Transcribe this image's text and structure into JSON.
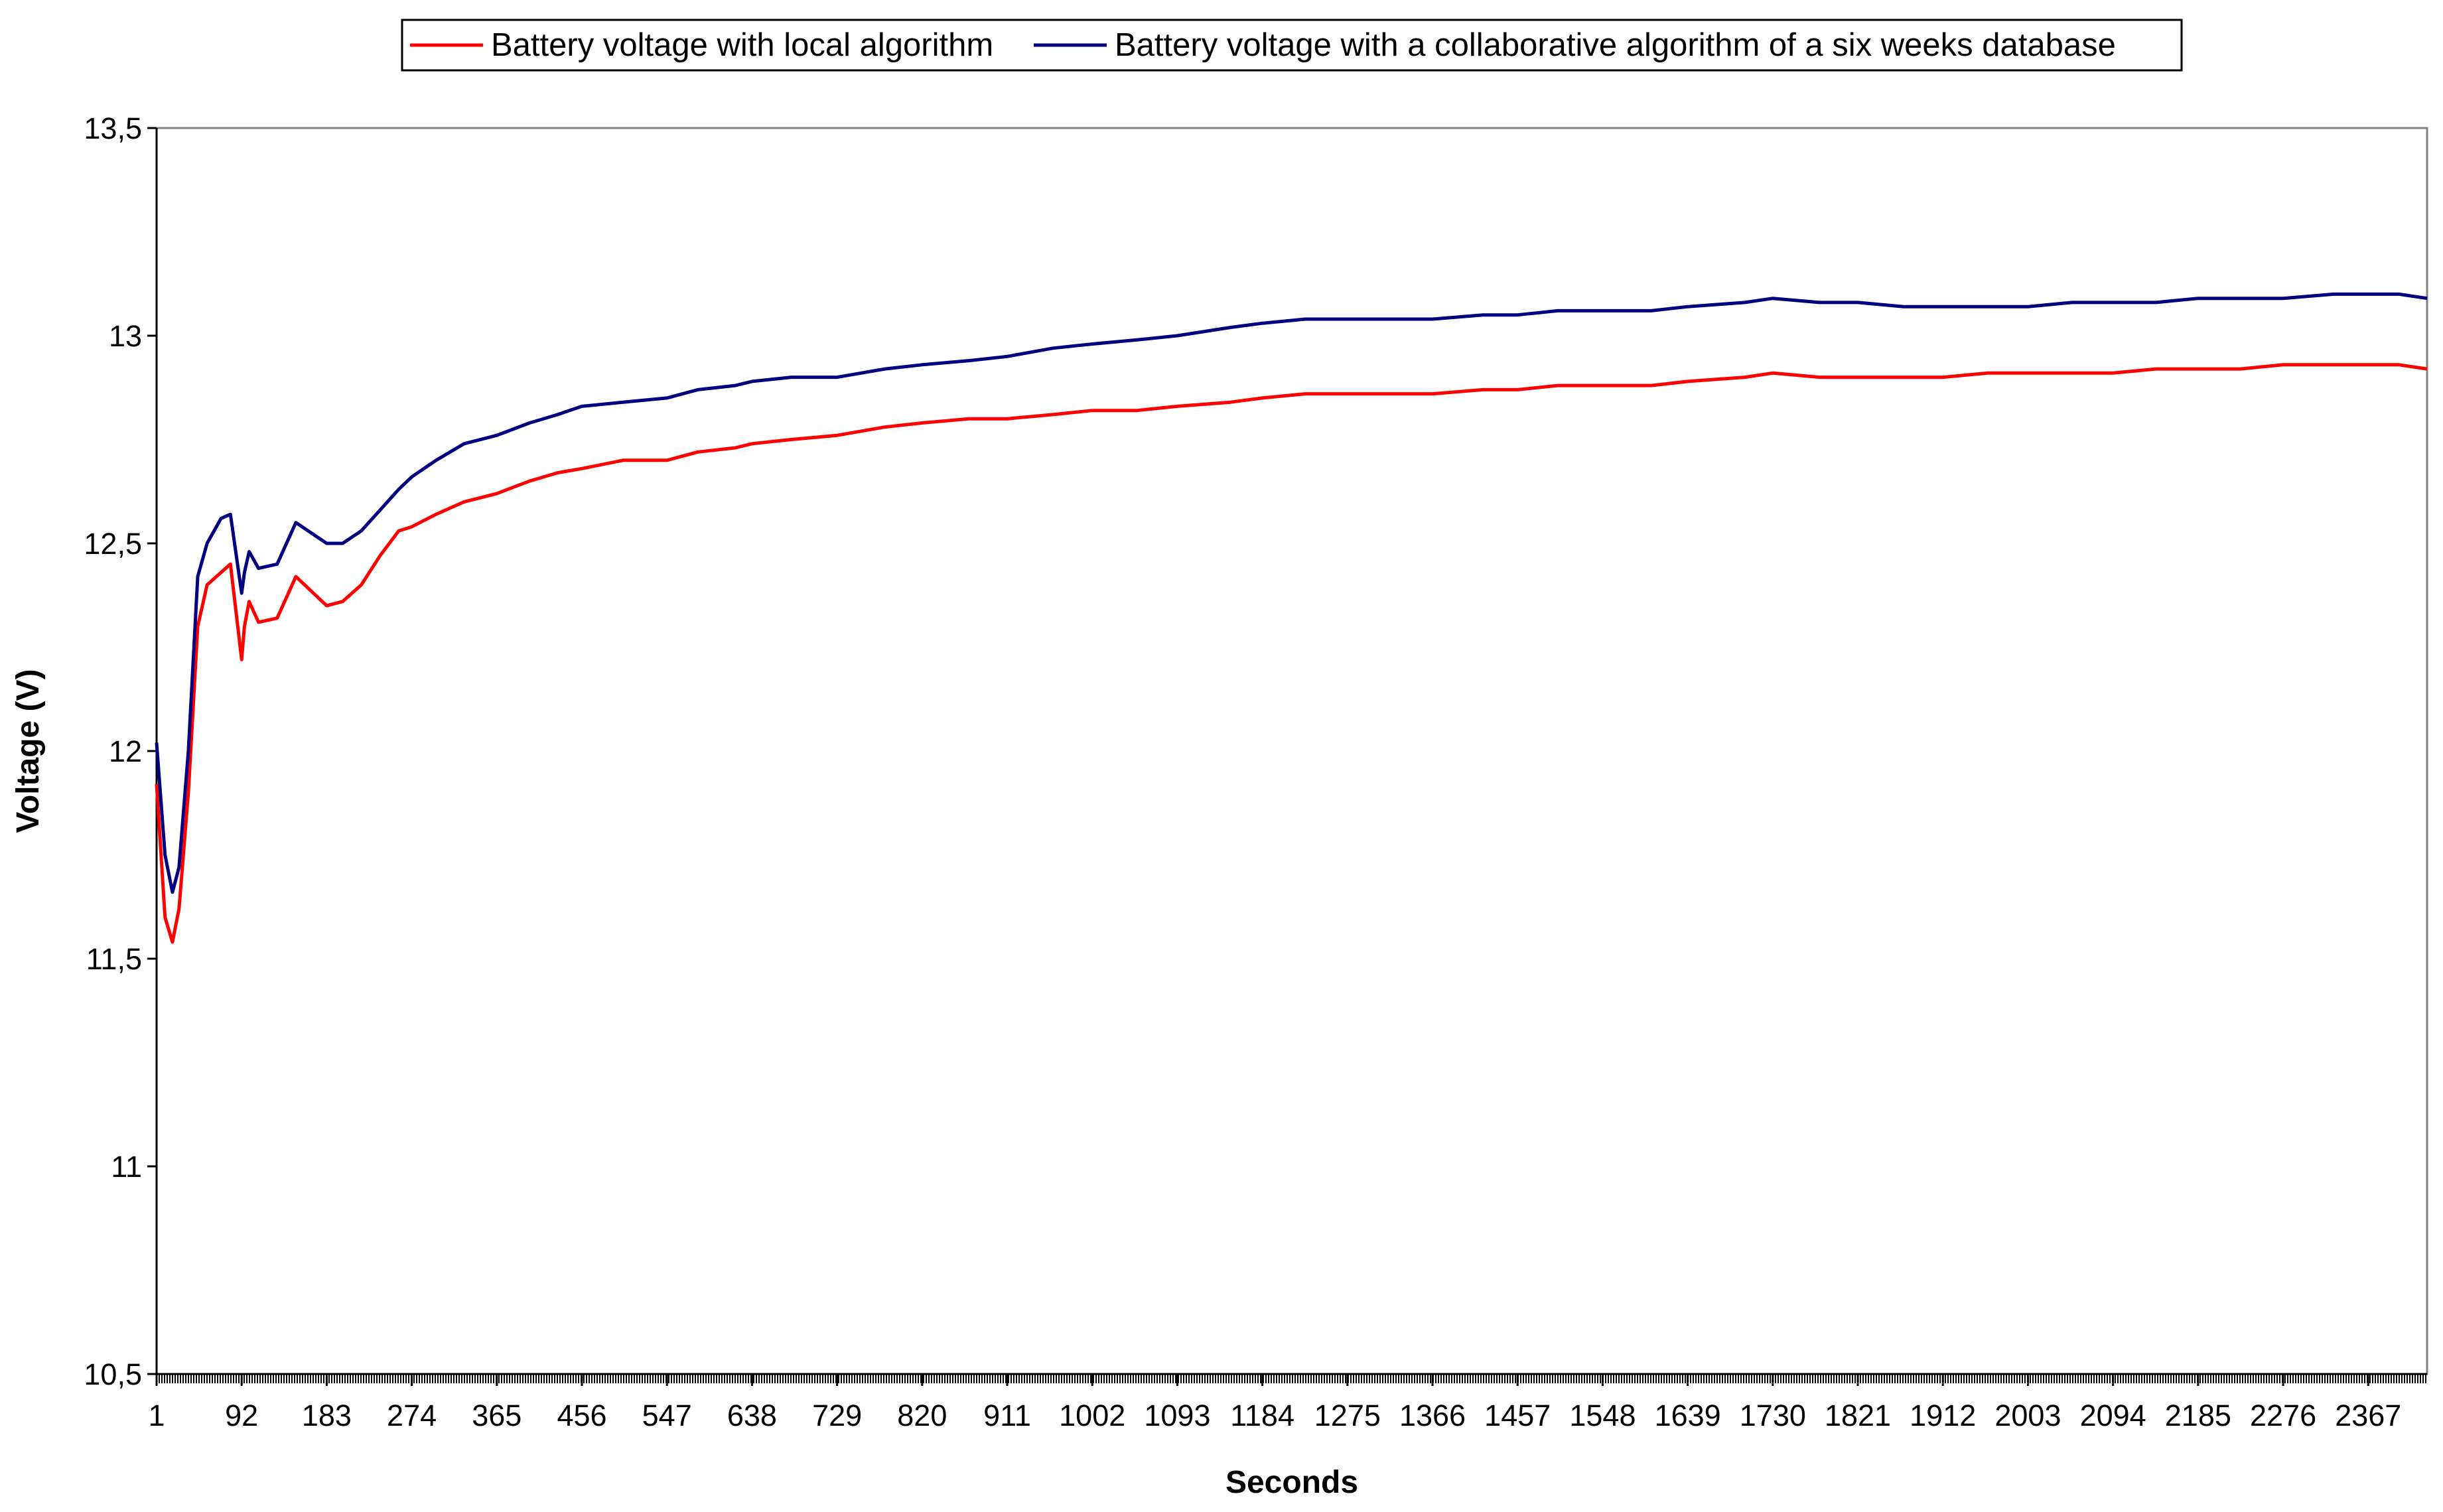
{
  "chart_data": {
    "type": "line",
    "title": "",
    "xlabel": "Seconds",
    "ylabel": "Voltage (V)",
    "xlim": [
      1,
      2430
    ],
    "ylim": [
      10.5,
      13.5
    ],
    "y_ticks": [
      "10,5",
      "11",
      "11,5",
      "12",
      "12,5",
      "13",
      "13,5"
    ],
    "y_tick_values": [
      10.5,
      11,
      11.5,
      12,
      12.5,
      13,
      13.5
    ],
    "x_ticks": [
      "1",
      "92",
      "183",
      "274",
      "365",
      "456",
      "547",
      "638",
      "729",
      "820",
      "911",
      "1002",
      "1093",
      "1184",
      "1275",
      "1366",
      "1457",
      "1548",
      "1639",
      "1730",
      "1821",
      "1912",
      "2003",
      "2094",
      "2185",
      "2276",
      "2367"
    ],
    "x_tick_values": [
      1,
      92,
      183,
      274,
      365,
      456,
      547,
      638,
      729,
      820,
      911,
      1002,
      1093,
      1184,
      1275,
      1366,
      1457,
      1548,
      1639,
      1730,
      1821,
      1912,
      2003,
      2094,
      2185,
      2276,
      2367
    ],
    "legend_position": "top",
    "grid": false,
    "series": [
      {
        "name": "Battery voltage with local algorithm",
        "color": "#ff0000",
        "x": [
          1,
          10,
          18,
          25,
          35,
          45,
          55,
          70,
          80,
          92,
          95,
          100,
          110,
          130,
          150,
          183,
          200,
          220,
          240,
          260,
          274,
          300,
          330,
          365,
          400,
          430,
          456,
          500,
          547,
          580,
          620,
          638,
          680,
          729,
          780,
          820,
          870,
          911,
          960,
          1002,
          1050,
          1093,
          1150,
          1184,
          1230,
          1275,
          1330,
          1366,
          1420,
          1457,
          1500,
          1548,
          1600,
          1639,
          1700,
          1730,
          1780,
          1821,
          1870,
          1912,
          1960,
          2003,
          2050,
          2094,
          2140,
          2185,
          2230,
          2276,
          2330,
          2367,
          2400,
          2430
        ],
        "y": [
          11.92,
          11.6,
          11.54,
          11.62,
          11.9,
          12.3,
          12.4,
          12.43,
          12.45,
          12.22,
          12.3,
          12.36,
          12.31,
          12.32,
          12.42,
          12.35,
          12.36,
          12.4,
          12.47,
          12.53,
          12.54,
          12.57,
          12.6,
          12.62,
          12.65,
          12.67,
          12.68,
          12.7,
          12.7,
          12.72,
          12.73,
          12.74,
          12.75,
          12.76,
          12.78,
          12.79,
          12.8,
          12.8,
          12.81,
          12.82,
          12.82,
          12.83,
          12.84,
          12.85,
          12.86,
          12.86,
          12.86,
          12.86,
          12.87,
          12.87,
          12.88,
          12.88,
          12.88,
          12.89,
          12.9,
          12.91,
          12.9,
          12.9,
          12.9,
          12.9,
          12.91,
          12.91,
          12.91,
          12.91,
          12.92,
          12.92,
          12.92,
          12.93,
          12.93,
          12.93,
          12.93,
          12.92
        ]
      },
      {
        "name": "Battery voltage with a collaborative algorithm of a six weeks database",
        "color": "#000080",
        "x": [
          1,
          10,
          18,
          25,
          35,
          45,
          55,
          70,
          80,
          92,
          95,
          100,
          110,
          130,
          150,
          183,
          200,
          220,
          240,
          260,
          274,
          300,
          330,
          365,
          400,
          430,
          456,
          500,
          547,
          580,
          620,
          638,
          680,
          729,
          780,
          820,
          870,
          911,
          960,
          1002,
          1050,
          1093,
          1150,
          1184,
          1230,
          1275,
          1330,
          1366,
          1420,
          1457,
          1500,
          1548,
          1600,
          1639,
          1700,
          1730,
          1780,
          1821,
          1870,
          1912,
          1960,
          2003,
          2050,
          2094,
          2140,
          2185,
          2230,
          2276,
          2330,
          2367,
          2400,
          2430
        ],
        "y": [
          12.02,
          11.75,
          11.66,
          11.72,
          12.0,
          12.42,
          12.5,
          12.56,
          12.57,
          12.38,
          12.43,
          12.48,
          12.44,
          12.45,
          12.55,
          12.5,
          12.5,
          12.53,
          12.58,
          12.63,
          12.66,
          12.7,
          12.74,
          12.76,
          12.79,
          12.81,
          12.83,
          12.84,
          12.85,
          12.87,
          12.88,
          12.89,
          12.9,
          12.9,
          12.92,
          12.93,
          12.94,
          12.95,
          12.97,
          12.98,
          12.99,
          13.0,
          13.02,
          13.03,
          13.04,
          13.04,
          13.04,
          13.04,
          13.05,
          13.05,
          13.06,
          13.06,
          13.06,
          13.07,
          13.08,
          13.09,
          13.08,
          13.08,
          13.07,
          13.07,
          13.07,
          13.07,
          13.08,
          13.08,
          13.08,
          13.09,
          13.09,
          13.09,
          13.1,
          13.1,
          13.1,
          13.09
        ]
      }
    ]
  }
}
